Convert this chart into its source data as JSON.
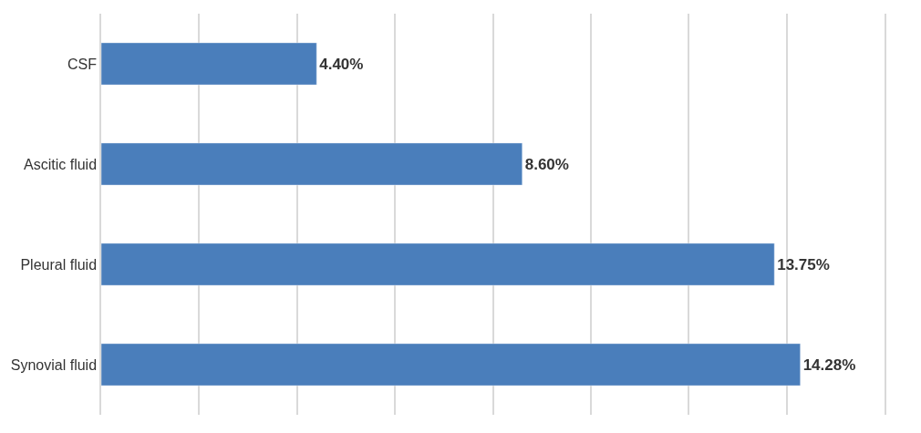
{
  "chart_data": {
    "type": "bar",
    "orientation": "horizontal",
    "categories": [
      "CSF",
      "Ascitic fluid",
      "Pleural fluid",
      "Synovial fluid"
    ],
    "values": [
      4.4,
      8.6,
      13.75,
      14.28
    ],
    "value_labels": [
      "4.40%",
      "8.60%",
      "13.75%",
      "14.28%"
    ],
    "color": "#4a7ebb",
    "xlim": [
      0,
      16
    ],
    "xticks": [
      {
        "value": 0,
        "label": null
      },
      {
        "value": 2,
        "label": null
      },
      {
        "value": 4,
        "label": null
      },
      {
        "value": 6,
        "label": null
      },
      {
        "value": 8,
        "label": null
      },
      {
        "value": 10,
        "label": null
      },
      {
        "value": 12,
        "label": null
      },
      {
        "value": 14,
        "label": null
      },
      {
        "value": 16,
        "label": null
      }
    ],
    "grid": "x",
    "tick_labels": "y"
  }
}
